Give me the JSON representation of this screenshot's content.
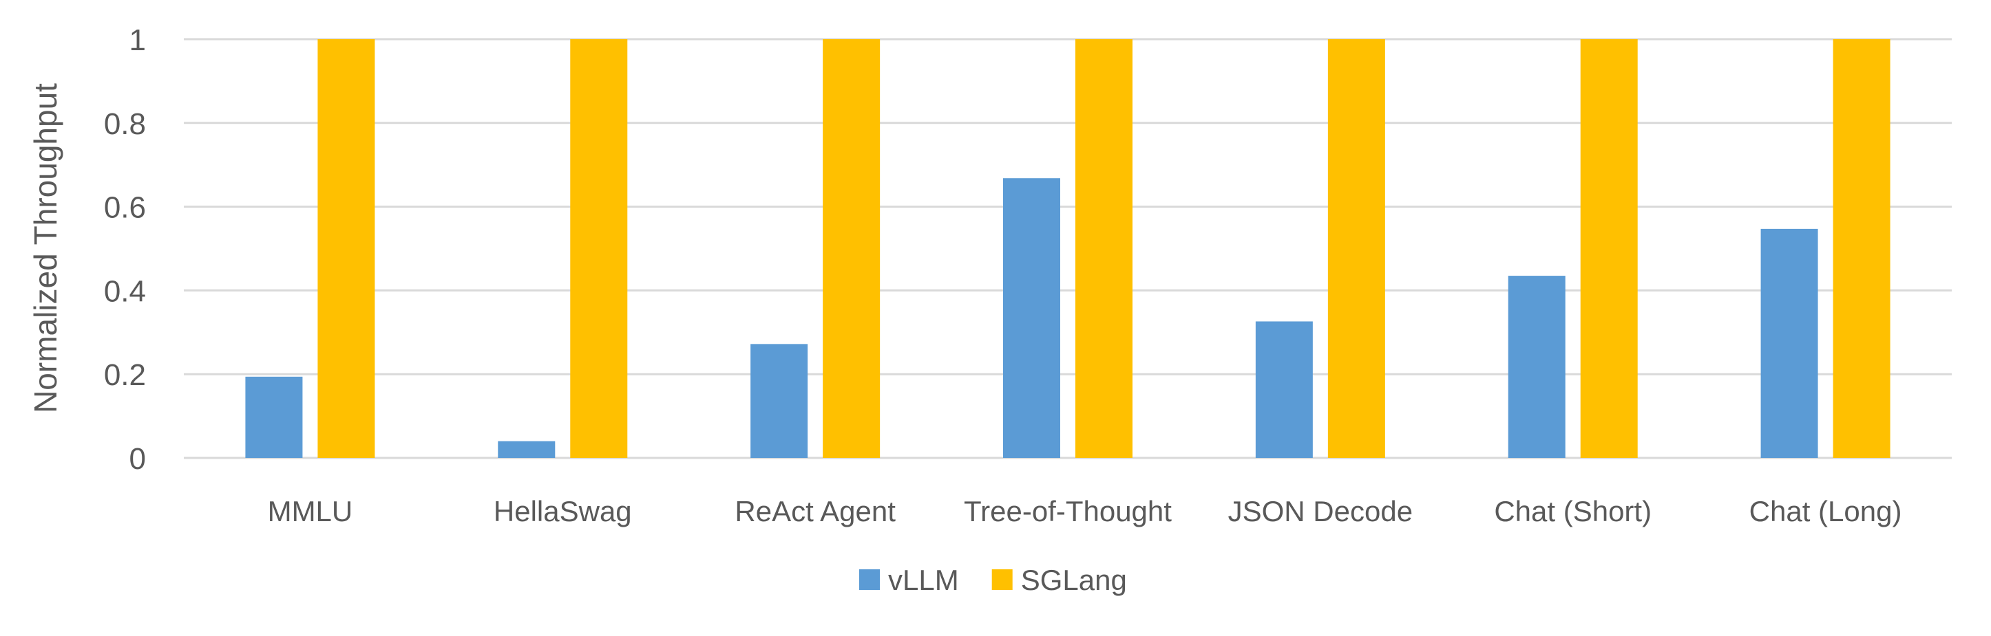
{
  "chart_data": {
    "type": "bar",
    "title": "",
    "xlabel": "",
    "ylabel": "Normalized Throughput",
    "ylim": [
      0,
      1
    ],
    "yticks": [
      0,
      0.2,
      0.4,
      0.6,
      0.8,
      1
    ],
    "ytick_labels": [
      "0",
      "0.2",
      "0.4",
      "0.6",
      "0.8",
      "1"
    ],
    "grid": true,
    "legend_position": "bottom",
    "categories": [
      "MMLU",
      "HellaSwag",
      "ReAct Agent",
      "Tree-of-Thought",
      "JSON Decode",
      "Chat (Short)",
      "Chat (Long)"
    ],
    "series": [
      {
        "name": "vLLM",
        "color": "#5B9BD5",
        "values": [
          0.194,
          0.04,
          0.272,
          0.668,
          0.326,
          0.435,
          0.547
        ]
      },
      {
        "name": "SGLang",
        "color": "#FFC000",
        "values": [
          1,
          1,
          1,
          1,
          1,
          1,
          1
        ]
      }
    ]
  }
}
